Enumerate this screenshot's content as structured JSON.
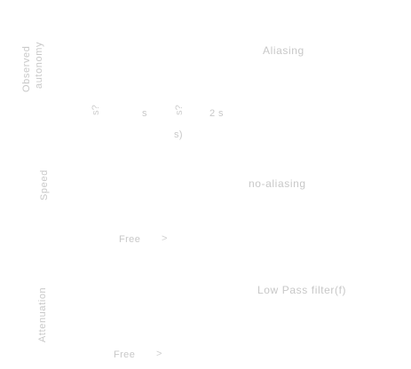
{
  "colors": {
    "background": "#ffffff",
    "text": "#c8c8c8"
  },
  "section1": {
    "title_line1": "Observed",
    "title_line2": "autonomy",
    "right_label": "Aliasing",
    "markers": [
      {
        "glyph": "s?",
        "label": "s"
      },
      {
        "glyph": "s?",
        "label": "2 s"
      }
    ],
    "marker_sub": "s)"
  },
  "section2": {
    "title": "Speed",
    "right_label": "no-aliasing",
    "row_label": "Free"
  },
  "section3": {
    "title": "Attenuation",
    "right_label": "Low Pass filter(f)",
    "row_label": "Free"
  }
}
